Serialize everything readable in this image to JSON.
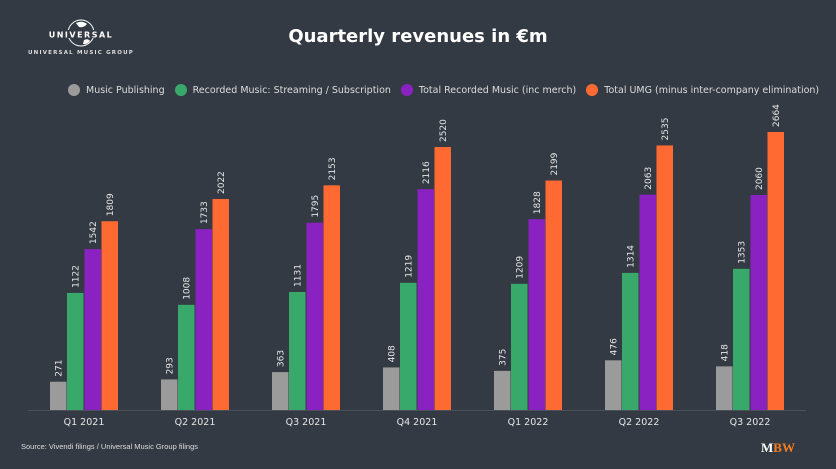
{
  "logo": {
    "brand": "UNIVERSAL",
    "subtitle": "UNIVERSAL MUSIC GROUP"
  },
  "chart_data": {
    "type": "bar",
    "title": "Quarterly revenues in €m",
    "categories": [
      "Q1 2021",
      "Q2 2021",
      "Q3 2021",
      "Q4 2021",
      "Q1 2022",
      "Q2 2022",
      "Q3 2022"
    ],
    "series": [
      {
        "name": "Music Publishing",
        "color": "#9b9b9b",
        "values": [
          271,
          293,
          363,
          408,
          375,
          476,
          418
        ]
      },
      {
        "name": "Recorded Music: Streaming / Subscription",
        "color": "#38a96b",
        "values": [
          1122,
          1008,
          1131,
          1219,
          1209,
          1314,
          1353
        ]
      },
      {
        "name": "Total Recorded Music (inc merch)",
        "color": "#8a22c2",
        "values": [
          1542,
          1733,
          1795,
          2116,
          1828,
          2063,
          2060
        ]
      },
      {
        "name": "Total UMG (minus inter-company elimination)",
        "color": "#ff6a33",
        "values": [
          1809,
          2022,
          2153,
          2520,
          2199,
          2535,
          2664
        ]
      }
    ],
    "ylim": [
      0,
      2664
    ],
    "grid": false,
    "legend": "top"
  },
  "source": "Source: Vivendi filings / Universal Music Group filings",
  "watermark": {
    "m": "M",
    "bw": "BW",
    "bw_color": "#f57c1f"
  }
}
